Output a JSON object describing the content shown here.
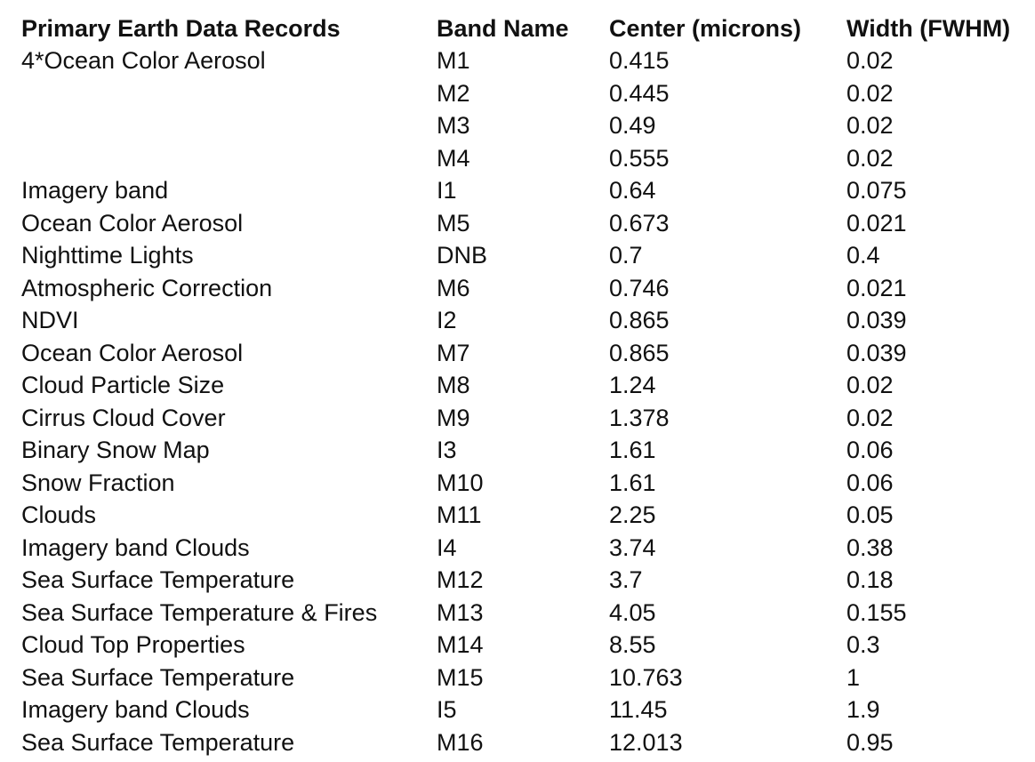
{
  "table": {
    "headers": [
      "Primary Earth Data Records",
      "Band Name",
      "Center (microns)",
      "Width (FWHM)"
    ],
    "rows": [
      [
        "4*Ocean Color Aerosol",
        "M1",
        "0.415",
        "0.02"
      ],
      [
        "",
        "M2",
        "0.445",
        "0.02"
      ],
      [
        "",
        "M3",
        "0.49",
        "0.02"
      ],
      [
        "",
        "M4",
        "0.555",
        "0.02"
      ],
      [
        "Imagery band",
        "I1",
        "0.64",
        "0.075"
      ],
      [
        "Ocean Color Aerosol",
        "M5",
        "0.673",
        "0.021"
      ],
      [
        "Nighttime Lights",
        "DNB",
        "0.7",
        "0.4"
      ],
      [
        "Atmospheric Correction",
        "M6",
        "0.746",
        "0.021"
      ],
      [
        "NDVI",
        "I2",
        "0.865",
        "0.039"
      ],
      [
        "Ocean Color Aerosol",
        "M7",
        "0.865",
        "0.039"
      ],
      [
        "Cloud Particle Size",
        "M8",
        "1.24",
        "0.02"
      ],
      [
        "Cirrus Cloud Cover",
        "M9",
        "1.378",
        "0.02"
      ],
      [
        "Binary Snow Map",
        "I3",
        "1.61",
        "0.06"
      ],
      [
        "Snow Fraction",
        "M10",
        "1.61",
        "0.06"
      ],
      [
        "Clouds",
        "M11",
        "2.25",
        "0.05"
      ],
      [
        "Imagery band Clouds",
        "I4",
        "3.74",
        "0.38"
      ],
      [
        "Sea Surface Temperature",
        "M12",
        "3.7",
        "0.18"
      ],
      [
        "Sea Surface Temperature & Fires",
        "M13",
        "4.05",
        "0.155"
      ],
      [
        "Cloud Top Properties",
        "M14",
        "8.55",
        "0.3"
      ],
      [
        "Sea Surface Temperature",
        "M15",
        "10.763",
        "1"
      ],
      [
        "Imagery band Clouds",
        "I5",
        "11.45",
        "1.9"
      ],
      [
        "Sea Surface Temperature",
        "M16",
        "12.013",
        "0.95"
      ]
    ]
  }
}
